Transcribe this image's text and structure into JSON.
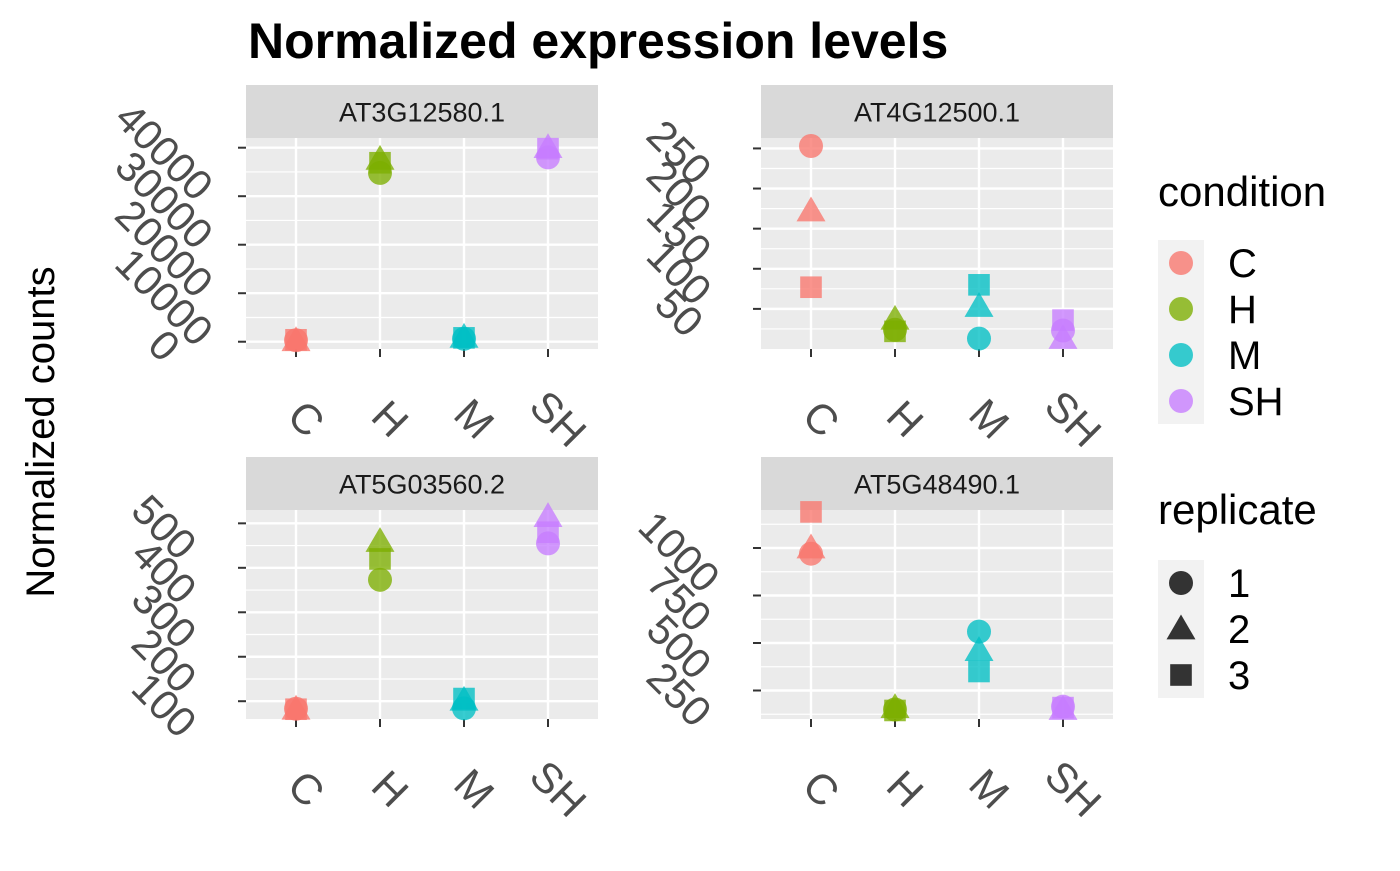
{
  "chart_data": {
    "type": "scatter",
    "title": "Normalized expression levels",
    "ylabel": "Normalized counts",
    "xlabel": "",
    "categories": [
      "C",
      "H",
      "M",
      "SH"
    ],
    "legend": {
      "placement": "right",
      "condition": {
        "title": "condition",
        "items": [
          {
            "label": "C",
            "color": "#F8766D"
          },
          {
            "label": "H",
            "color": "#7CAE00"
          },
          {
            "label": "M",
            "color": "#00BFC4"
          },
          {
            "label": "SH",
            "color": "#C77CFF"
          }
        ]
      },
      "replicate": {
        "title": "replicate",
        "items": [
          {
            "label": "1",
            "shape": "circle"
          },
          {
            "label": "2",
            "shape": "triangle"
          },
          {
            "label": "3",
            "shape": "square"
          }
        ]
      }
    },
    "panels": [
      {
        "gene": "AT3G12580.1",
        "ylim": [
          -1500,
          42000
        ],
        "yticks": [
          0,
          10000,
          20000,
          30000,
          40000
        ],
        "ytick_labels": [
          "0",
          "10000",
          "20000",
          "30000",
          "40000"
        ],
        "points": [
          {
            "condition": "C",
            "replicate": "1",
            "value": 300
          },
          {
            "condition": "C",
            "replicate": "2",
            "value": 200
          },
          {
            "condition": "C",
            "replicate": "3",
            "value": 400
          },
          {
            "condition": "H",
            "replicate": "1",
            "value": 34800
          },
          {
            "condition": "H",
            "replicate": "2",
            "value": 37600
          },
          {
            "condition": "H",
            "replicate": "3",
            "value": 36900
          },
          {
            "condition": "M",
            "replicate": "1",
            "value": 600
          },
          {
            "condition": "M",
            "replicate": "2",
            "value": 900
          },
          {
            "condition": "M",
            "replicate": "3",
            "value": 800
          },
          {
            "condition": "SH",
            "replicate": "1",
            "value": 38000
          },
          {
            "condition": "SH",
            "replicate": "2",
            "value": 40000
          },
          {
            "condition": "SH",
            "replicate": "3",
            "value": 39800
          }
        ]
      },
      {
        "gene": "AT4G12500.1",
        "ylim": [
          0,
          263
        ],
        "yticks": [
          50,
          100,
          150,
          200,
          250
        ],
        "ytick_labels": [
          "50",
          "100",
          "150",
          "200",
          "250"
        ],
        "points": [
          {
            "condition": "C",
            "replicate": "1",
            "value": 253
          },
          {
            "condition": "C",
            "replicate": "2",
            "value": 172
          },
          {
            "condition": "C",
            "replicate": "3",
            "value": 77
          },
          {
            "condition": "H",
            "replicate": "1",
            "value": 24
          },
          {
            "condition": "H",
            "replicate": "2",
            "value": 37
          },
          {
            "condition": "H",
            "replicate": "3",
            "value": 22
          },
          {
            "condition": "M",
            "replicate": "1",
            "value": 13
          },
          {
            "condition": "M",
            "replicate": "2",
            "value": 53
          },
          {
            "condition": "M",
            "replicate": "3",
            "value": 80
          },
          {
            "condition": "SH",
            "replicate": "1",
            "value": 23
          },
          {
            "condition": "SH",
            "replicate": "2",
            "value": 13
          },
          {
            "condition": "SH",
            "replicate": "3",
            "value": 36
          }
        ]
      },
      {
        "gene": "AT5G03560.2",
        "ylim": [
          60,
          530
        ],
        "yticks": [
          100,
          200,
          300,
          400,
          500
        ],
        "ytick_labels": [
          "100",
          "200",
          "300",
          "400",
          "500"
        ],
        "points": [
          {
            "condition": "C",
            "replicate": "1",
            "value": 83
          },
          {
            "condition": "C",
            "replicate": "2",
            "value": 82
          },
          {
            "condition": "C",
            "replicate": "3",
            "value": 82
          },
          {
            "condition": "H",
            "replicate": "1",
            "value": 373
          },
          {
            "condition": "H",
            "replicate": "2",
            "value": 459
          },
          {
            "condition": "H",
            "replicate": "3",
            "value": 420
          },
          {
            "condition": "M",
            "replicate": "1",
            "value": 84
          },
          {
            "condition": "M",
            "replicate": "2",
            "value": 102
          },
          {
            "condition": "M",
            "replicate": "3",
            "value": 106
          },
          {
            "condition": "SH",
            "replicate": "1",
            "value": 455
          },
          {
            "condition": "SH",
            "replicate": "2",
            "value": 515
          },
          {
            "condition": "SH",
            "replicate": "3",
            "value": 480
          }
        ]
      },
      {
        "gene": "AT5G48490.1",
        "ylim": [
          100,
          1200
        ],
        "yticks": [
          250,
          500,
          750,
          1000
        ],
        "ytick_labels": [
          "250",
          "500",
          "750",
          "1000"
        ],
        "points": [
          {
            "condition": "C",
            "replicate": "1",
            "value": 970
          },
          {
            "condition": "C",
            "replicate": "2",
            "value": 1000
          },
          {
            "condition": "C",
            "replicate": "3",
            "value": 1190
          },
          {
            "condition": "H",
            "replicate": "1",
            "value": 150
          },
          {
            "condition": "H",
            "replicate": "2",
            "value": 160
          },
          {
            "condition": "H",
            "replicate": "3",
            "value": 145
          },
          {
            "condition": "M",
            "replicate": "1",
            "value": 560
          },
          {
            "condition": "M",
            "replicate": "2",
            "value": 460
          },
          {
            "condition": "M",
            "replicate": "3",
            "value": 350
          },
          {
            "condition": "SH",
            "replicate": "1",
            "value": 165
          },
          {
            "condition": "SH",
            "replicate": "2",
            "value": 150
          },
          {
            "condition": "SH",
            "replicate": "3",
            "value": 160
          }
        ]
      }
    ],
    "grid": true
  }
}
